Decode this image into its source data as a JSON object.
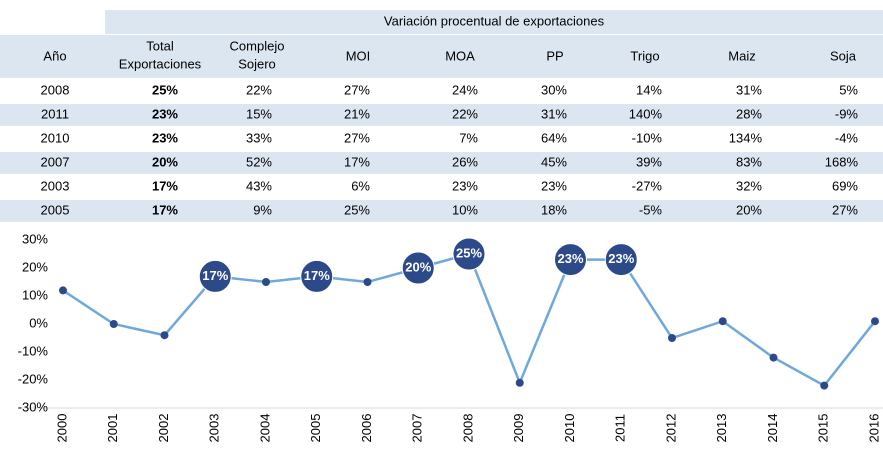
{
  "table": {
    "group_header": "Variación procentual de exportaciones",
    "columns": [
      [
        "Año"
      ],
      [
        "Total",
        "Exportaciones"
      ],
      [
        "Complejo",
        "Sojero"
      ],
      [
        "MOI"
      ],
      [
        "MOA"
      ],
      [
        "PP"
      ],
      [
        "Trigo"
      ],
      [
        "Maiz"
      ],
      [
        "Soja"
      ]
    ],
    "rows": [
      [
        "2008",
        "25%",
        "22%",
        "27%",
        "24%",
        "30%",
        "14%",
        "31%",
        "5%"
      ],
      [
        "2011",
        "23%",
        "15%",
        "21%",
        "22%",
        "31%",
        "140%",
        "28%",
        "-9%"
      ],
      [
        "2010",
        "23%",
        "33%",
        "27%",
        "7%",
        "64%",
        "-10%",
        "134%",
        "-4%"
      ],
      [
        "2007",
        "20%",
        "52%",
        "17%",
        "26%",
        "45%",
        "39%",
        "83%",
        "168%"
      ],
      [
        "2003",
        "17%",
        "43%",
        "6%",
        "23%",
        "23%",
        "-27%",
        "32%",
        "69%"
      ],
      [
        "2005",
        "17%",
        "9%",
        "25%",
        "10%",
        "18%",
        "-5%",
        "20%",
        "27%"
      ]
    ]
  },
  "chart_data": {
    "type": "line",
    "x": [
      "2000",
      "2001",
      "2002",
      "2003",
      "2004",
      "2005",
      "2006",
      "2007",
      "2008",
      "2009",
      "2010",
      "2011",
      "2012",
      "2013",
      "2014",
      "2015",
      "2016"
    ],
    "values": [
      12,
      0,
      -4,
      17,
      15,
      17,
      15,
      20,
      25,
      -21,
      23,
      23,
      -5,
      1,
      -12,
      -22,
      1
    ],
    "value_labels": [
      null,
      null,
      null,
      "17%",
      null,
      "17%",
      null,
      "20%",
      "25%",
      null,
      "23%",
      "23%",
      null,
      null,
      null,
      null,
      null
    ],
    "color": "#6fa8dc",
    "marker_color": "#2c4a8a",
    "ylim": [
      -30,
      30
    ],
    "yticks": [
      {
        "value": 30,
        "label": "30%"
      },
      {
        "value": 20,
        "label": "20%"
      },
      {
        "value": 10,
        "label": "10%"
      },
      {
        "value": 0,
        "label": "0%"
      },
      {
        "value": -10,
        "label": "-10%"
      },
      {
        "value": -20,
        "label": "-20%"
      },
      {
        "value": -30,
        "label": "-30%"
      }
    ],
    "grid": false
  }
}
